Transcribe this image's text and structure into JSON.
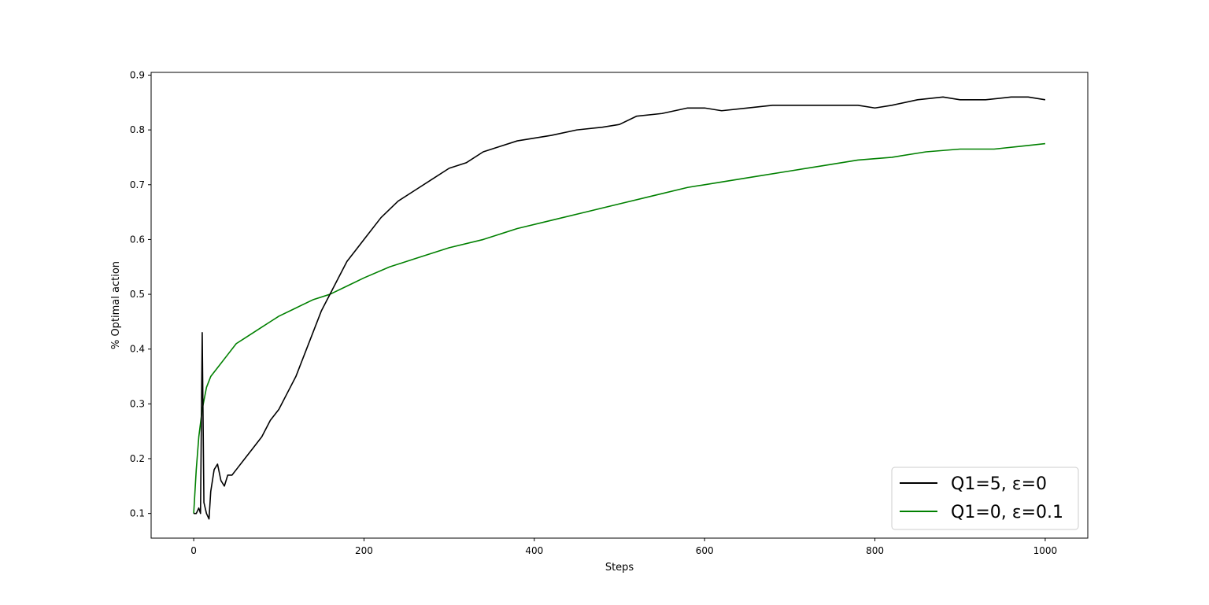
{
  "chart_data": {
    "type": "line",
    "title": "",
    "xlabel": "Steps",
    "ylabel": "% Optimal action",
    "xlim": [
      -50,
      1050
    ],
    "ylim": [
      0.055,
      0.905
    ],
    "xticks": [
      0,
      200,
      400,
      600,
      800,
      1000
    ],
    "xtick_labels": [
      "0",
      "200",
      "400",
      "600",
      "800",
      "1000"
    ],
    "yticks": [
      0.1,
      0.2,
      0.3,
      0.4,
      0.5,
      0.6,
      0.7,
      0.8,
      0.9
    ],
    "ytick_labels": [
      "0.1",
      "0.2",
      "0.3",
      "0.4",
      "0.5",
      "0.6",
      "0.7",
      "0.8",
      "0.9"
    ],
    "grid": false,
    "legend_position": "bottom-right",
    "series": [
      {
        "name": "Q1=5, ε=0",
        "color": "#000000",
        "points": [
          [
            0,
            0.1
          ],
          [
            3,
            0.1
          ],
          [
            6,
            0.11
          ],
          [
            8,
            0.1
          ],
          [
            10,
            0.43
          ],
          [
            12,
            0.12
          ],
          [
            15,
            0.1
          ],
          [
            18,
            0.09
          ],
          [
            20,
            0.14
          ],
          [
            24,
            0.18
          ],
          [
            28,
            0.19
          ],
          [
            32,
            0.16
          ],
          [
            36,
            0.15
          ],
          [
            40,
            0.17
          ],
          [
            45,
            0.17
          ],
          [
            50,
            0.18
          ],
          [
            60,
            0.2
          ],
          [
            70,
            0.22
          ],
          [
            80,
            0.24
          ],
          [
            90,
            0.27
          ],
          [
            100,
            0.29
          ],
          [
            110,
            0.32
          ],
          [
            120,
            0.35
          ],
          [
            130,
            0.39
          ],
          [
            140,
            0.43
          ],
          [
            150,
            0.47
          ],
          [
            160,
            0.5
          ],
          [
            170,
            0.53
          ],
          [
            180,
            0.56
          ],
          [
            190,
            0.58
          ],
          [
            200,
            0.6
          ],
          [
            220,
            0.64
          ],
          [
            240,
            0.67
          ],
          [
            260,
            0.69
          ],
          [
            280,
            0.71
          ],
          [
            300,
            0.73
          ],
          [
            320,
            0.74
          ],
          [
            340,
            0.76
          ],
          [
            360,
            0.77
          ],
          [
            380,
            0.78
          ],
          [
            400,
            0.785
          ],
          [
            420,
            0.79
          ],
          [
            450,
            0.8
          ],
          [
            480,
            0.805
          ],
          [
            500,
            0.81
          ],
          [
            520,
            0.825
          ],
          [
            550,
            0.83
          ],
          [
            580,
            0.84
          ],
          [
            600,
            0.84
          ],
          [
            620,
            0.835
          ],
          [
            650,
            0.84
          ],
          [
            680,
            0.845
          ],
          [
            700,
            0.845
          ],
          [
            720,
            0.845
          ],
          [
            750,
            0.845
          ],
          [
            780,
            0.845
          ],
          [
            800,
            0.84
          ],
          [
            820,
            0.845
          ],
          [
            850,
            0.855
          ],
          [
            880,
            0.86
          ],
          [
            900,
            0.855
          ],
          [
            930,
            0.855
          ],
          [
            960,
            0.86
          ],
          [
            980,
            0.86
          ],
          [
            1000,
            0.855
          ]
        ]
      },
      {
        "name": "Q1=0, ε=0.1",
        "color": "#008000",
        "points": [
          [
            0,
            0.1
          ],
          [
            3,
            0.18
          ],
          [
            6,
            0.24
          ],
          [
            10,
            0.29
          ],
          [
            15,
            0.33
          ],
          [
            20,
            0.35
          ],
          [
            30,
            0.37
          ],
          [
            40,
            0.39
          ],
          [
            50,
            0.41
          ],
          [
            60,
            0.42
          ],
          [
            70,
            0.43
          ],
          [
            80,
            0.44
          ],
          [
            90,
            0.45
          ],
          [
            100,
            0.46
          ],
          [
            120,
            0.475
          ],
          [
            140,
            0.49
          ],
          [
            160,
            0.5
          ],
          [
            180,
            0.515
          ],
          [
            200,
            0.53
          ],
          [
            230,
            0.55
          ],
          [
            260,
            0.565
          ],
          [
            300,
            0.585
          ],
          [
            340,
            0.6
          ],
          [
            380,
            0.62
          ],
          [
            420,
            0.635
          ],
          [
            460,
            0.65
          ],
          [
            500,
            0.665
          ],
          [
            540,
            0.68
          ],
          [
            580,
            0.695
          ],
          [
            620,
            0.705
          ],
          [
            660,
            0.715
          ],
          [
            700,
            0.725
          ],
          [
            740,
            0.735
          ],
          [
            780,
            0.745
          ],
          [
            820,
            0.75
          ],
          [
            860,
            0.76
          ],
          [
            900,
            0.765
          ],
          [
            940,
            0.765
          ],
          [
            970,
            0.77
          ],
          [
            1000,
            0.775
          ]
        ]
      }
    ]
  }
}
